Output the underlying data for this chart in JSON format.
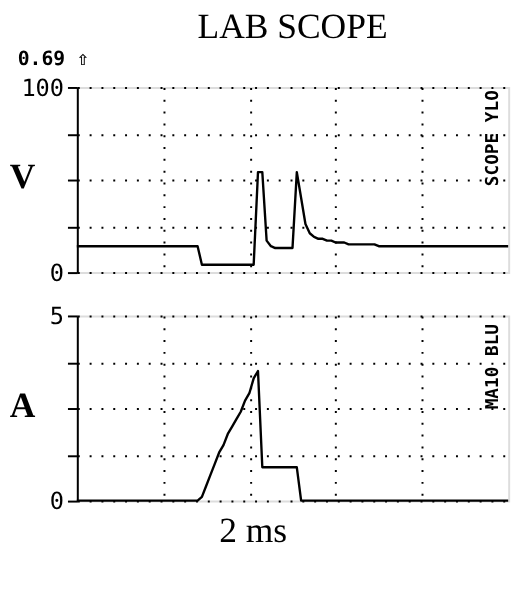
{
  "chart_data": [
    {
      "type": "line",
      "title": "LAB SCOPE",
      "ylabel": "V",
      "annotations": [
        "0.69 ⇧",
        "SCOPE YLO"
      ],
      "categories": [
        null,
        null,
        null,
        null,
        null,
        null,
        null,
        null,
        null,
        null,
        null,
        null,
        null,
        null,
        null,
        null,
        null,
        null,
        null,
        null,
        null,
        null,
        null,
        null,
        null,
        null,
        null,
        null,
        null,
        null,
        null,
        null,
        null,
        null,
        null,
        null,
        null,
        null,
        null,
        null,
        null,
        null,
        null,
        null,
        null,
        null,
        null,
        null,
        null,
        null,
        null,
        null,
        null,
        null,
        null,
        null,
        null,
        null,
        null,
        null,
        null,
        null,
        null,
        null,
        null,
        null,
        null,
        null,
        null,
        null,
        null,
        null,
        null,
        null,
        null,
        null,
        null,
        null,
        null,
        null,
        null,
        null,
        null,
        null,
        null,
        null,
        null,
        null,
        null,
        null,
        null,
        null,
        null,
        null,
        null,
        null,
        null,
        null,
        null,
        null,
        null
      ],
      "ylim": [
        0,
        100
      ],
      "yticks": [
        0,
        {
          "value": 25,
          "label": null
        },
        {
          "value": 50,
          "label": null
        },
        {
          "value": 75,
          "label": null
        },
        100
      ],
      "tick_labels": "y",
      "grid": true,
      "legend": false,
      "marker": "none",
      "line_style": "solid",
      "series": [
        {
          "color": "#000000",
          "values": [
            14,
            14,
            14,
            14,
            14,
            14,
            14,
            14,
            14,
            14,
            14,
            14,
            14,
            14,
            14,
            14,
            14,
            14,
            14,
            14,
            14,
            14,
            14,
            14,
            14,
            14,
            14,
            14,
            14,
            4,
            4,
            4,
            4,
            4,
            4,
            4,
            4,
            4,
            4,
            4,
            4,
            4,
            54,
            54,
            17,
            14,
            13,
            13,
            13,
            13,
            13,
            54,
            40,
            26,
            21,
            19,
            18,
            18,
            17,
            17,
            16,
            16,
            16,
            15,
            15,
            15,
            15,
            15,
            15,
            15,
            14,
            14,
            14,
            14,
            14,
            14,
            14,
            14,
            14,
            14,
            14,
            14,
            14,
            14,
            14,
            14,
            14,
            14,
            14,
            14,
            14,
            14,
            14,
            14,
            14,
            14,
            14,
            14,
            14,
            14,
            14
          ]
        }
      ]
    },
    {
      "type": "line",
      "ylabel": "A",
      "annotations": [
        "MA10 BLU",
        "2 ms"
      ],
      "categories": [
        null,
        null,
        null,
        null,
        null,
        null,
        null,
        null,
        null,
        null,
        null,
        null,
        null,
        null,
        null,
        null,
        null,
        null,
        null,
        null,
        null,
        null,
        null,
        null,
        null,
        null,
        null,
        null,
        null,
        null,
        null,
        null,
        null,
        null,
        null,
        null,
        null,
        null,
        null,
        null,
        null,
        null,
        null,
        null,
        null,
        null,
        null,
        null,
        null,
        null,
        null,
        null,
        null,
        null,
        null,
        null,
        null,
        null,
        null,
        null,
        null,
        null,
        null,
        null,
        null,
        null,
        null,
        null,
        null,
        null,
        null,
        null,
        null,
        null,
        null,
        null,
        null,
        null,
        null,
        null,
        null,
        null,
        null,
        null,
        null,
        null,
        null,
        null,
        null,
        null,
        null,
        null,
        null,
        null,
        null,
        null,
        null,
        null,
        null,
        null,
        null
      ],
      "ylim": [
        0,
        5
      ],
      "yticks": [
        0,
        {
          "value": 1.25,
          "label": null
        },
        {
          "value": 2.5,
          "label": null
        },
        {
          "value": 3.75,
          "label": null
        },
        5
      ],
      "tick_labels": "y",
      "grid": true,
      "legend": false,
      "marker": "none",
      "line_style": "solid",
      "series": [
        {
          "color": "#000000",
          "values": [
            0,
            0,
            0,
            0,
            0,
            0,
            0,
            0,
            0,
            0,
            0,
            0,
            0,
            0,
            0,
            0,
            0,
            0,
            0,
            0,
            0,
            0,
            0,
            0,
            0,
            0,
            0,
            0,
            0,
            0.1,
            0.4,
            0.7,
            1.0,
            1.3,
            1.5,
            1.8,
            2.0,
            2.2,
            2.4,
            2.7,
            2.9,
            3.3,
            3.5,
            0.9,
            0.9,
            0.9,
            0.9,
            0.9,
            0.9,
            0.9,
            0.9,
            0.9,
            0,
            0,
            0,
            0,
            0,
            0,
            0,
            0,
            0,
            0,
            0,
            0,
            0,
            0,
            0,
            0,
            0,
            0,
            0,
            0,
            0,
            0,
            0,
            0,
            0,
            0,
            0,
            0,
            0,
            0,
            0,
            0,
            0,
            0,
            0,
            0,
            0,
            0,
            0,
            0,
            0,
            0,
            0,
            0,
            0,
            0,
            0,
            0,
            0
          ]
        }
      ]
    }
  ]
}
